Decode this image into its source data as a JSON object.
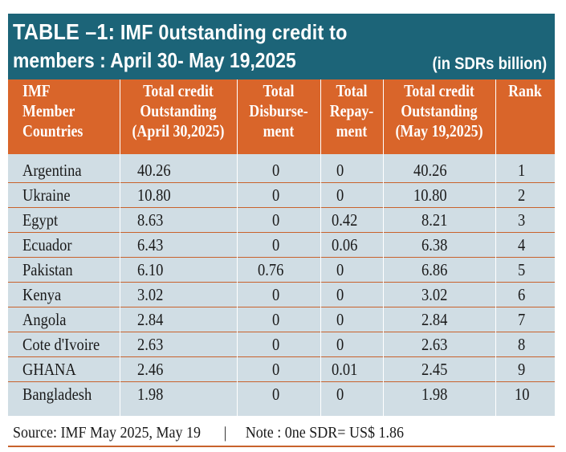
{
  "title": {
    "prefix": "TABLE –1:",
    "line1": " IMF 0utstanding credit to",
    "line2": "members : April 30- May 19,2025",
    "unit": "(in SDRs billion)"
  },
  "columns": [
    "IMF\nMember\nCountries",
    "Total credit\nOutstanding\n(April 30,2025)",
    "Total\nDisburse-\nment",
    "Total\nRepay-\nment",
    "Total credit\nOutstanding\n(May 19,2025)",
    "Rank"
  ],
  "rows": [
    [
      "Argentina",
      "40.26",
      "0",
      "0",
      "40.26",
      "1"
    ],
    [
      "Ukraine",
      "10.80",
      "0",
      "0",
      "10.80",
      "2"
    ],
    [
      "Egypt",
      "8.63",
      "0",
      "0.42",
      "8.21",
      "3"
    ],
    [
      "Ecuador",
      "6.43",
      "0",
      "0.06",
      "6.38",
      "4"
    ],
    [
      "Pakistan",
      "6.10",
      "0.76",
      "0",
      "6.86",
      "5"
    ],
    [
      "Kenya",
      "3.02",
      "0",
      "0",
      "3.02",
      "6"
    ],
    [
      "Angola",
      "2.84",
      "0",
      "0",
      "2.84",
      "7"
    ],
    [
      "Cote d'Ivoire",
      "2.63",
      "0",
      "0",
      "2.63",
      "8"
    ],
    [
      "GHANA",
      "2.46",
      "0",
      "0.01",
      "2.45",
      "9"
    ],
    [
      "Bangladesh",
      "1.98",
      "0",
      "0",
      "1.98",
      "10"
    ]
  ],
  "footer": {
    "source": "Source: IMF May 2025, May 19",
    "separator": "|",
    "note": "Note : 0ne SDR= US$ 1.86"
  },
  "colors": {
    "banner": "#1c6478",
    "header": "#d9652a",
    "body": "#d0dde4",
    "rule": "#c8622c"
  }
}
